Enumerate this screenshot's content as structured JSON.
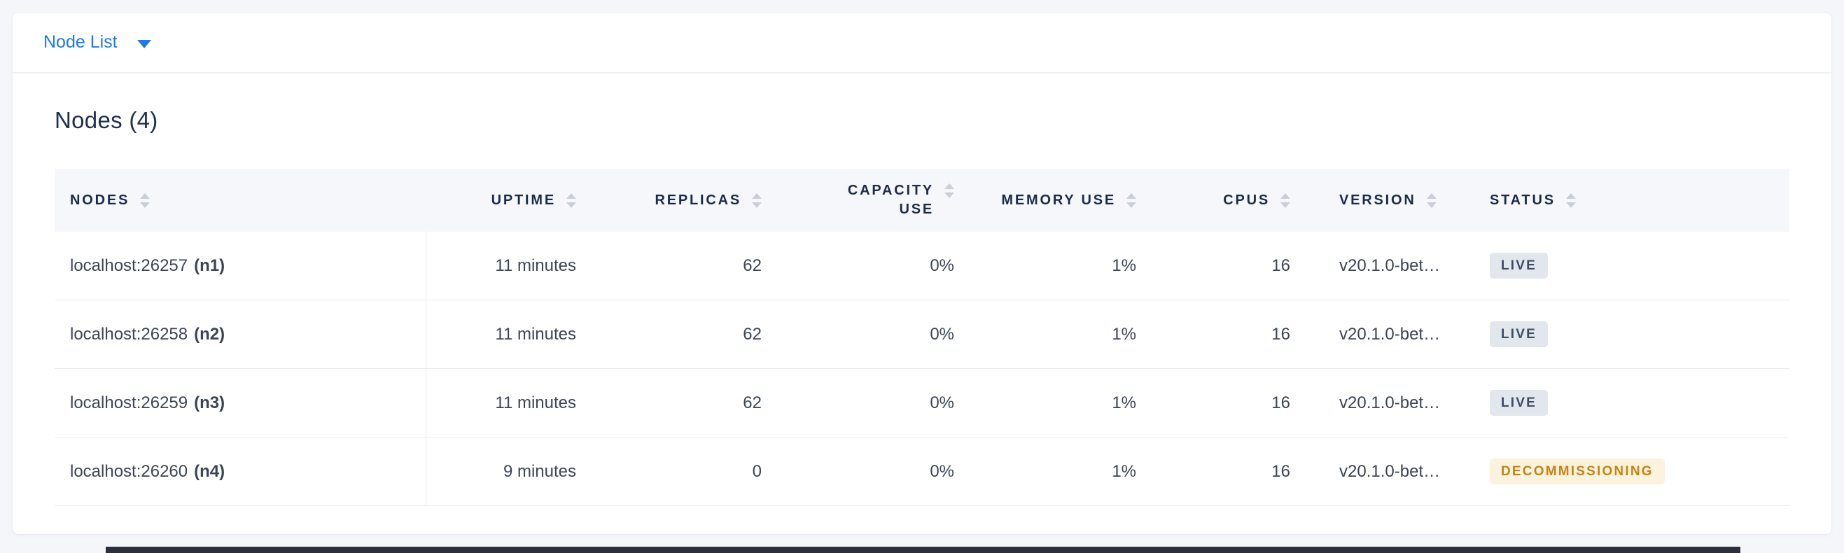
{
  "topbar": {
    "dropdown": {
      "label": "Node List",
      "icon": "caret-down-icon"
    }
  },
  "nodes_section": {
    "title": "Nodes (4)",
    "table": {
      "columns": [
        {
          "key": "nodes",
          "label": "NODES",
          "align": "left",
          "sortable": true
        },
        {
          "key": "uptime",
          "label": "UPTIME",
          "align": "right",
          "sortable": true
        },
        {
          "key": "replicas",
          "label": "REPLICAS",
          "align": "right",
          "sortable": true
        },
        {
          "key": "capacity_use",
          "label": "CAPACITY USE",
          "align": "right",
          "sortable": true
        },
        {
          "key": "memory_use",
          "label": "MEMORY USE",
          "align": "right",
          "sortable": true
        },
        {
          "key": "cpus",
          "label": "CPUS",
          "align": "right",
          "sortable": true
        },
        {
          "key": "version",
          "label": "VERSION",
          "align": "left",
          "sortable": true
        },
        {
          "key": "status",
          "label": "STATUS",
          "align": "left",
          "sortable": true
        }
      ],
      "rows": [
        {
          "address": "localhost:26257",
          "node_id": "(n1)",
          "uptime": "11 minutes",
          "replicas": "62",
          "capacity_use": "0%",
          "memory_use": "1%",
          "cpus": "16",
          "version": "v20.1.0-bet…",
          "status": "LIVE",
          "status_type": "live"
        },
        {
          "address": "localhost:26258",
          "node_id": "(n2)",
          "uptime": "11 minutes",
          "replicas": "62",
          "capacity_use": "0%",
          "memory_use": "1%",
          "cpus": "16",
          "version": "v20.1.0-bet…",
          "status": "LIVE",
          "status_type": "live"
        },
        {
          "address": "localhost:26259",
          "node_id": "(n3)",
          "uptime": "11 minutes",
          "replicas": "62",
          "capacity_use": "0%",
          "memory_use": "1%",
          "cpus": "16",
          "version": "v20.1.0-bet…",
          "status": "LIVE",
          "status_type": "live"
        },
        {
          "address": "localhost:26260",
          "node_id": "(n4)",
          "uptime": "9 minutes",
          "replicas": "0",
          "capacity_use": "0%",
          "memory_use": "1%",
          "cpus": "16",
          "version": "v20.1.0-bet…",
          "status": "DECOMMISSIONING",
          "status_type": "decommissioning"
        }
      ]
    }
  },
  "icons": {
    "dropdown_caret": "caret-down-icon",
    "column_sort": "sort-arrows-icon"
  },
  "colors": {
    "accent_blue": "#2079e8",
    "badge_live_bg": "#e2e7ee",
    "badge_live_text": "#3e4d63",
    "badge_decommissioning_bg": "#fcf3de",
    "badge_decommissioning_text": "#c8830f"
  }
}
